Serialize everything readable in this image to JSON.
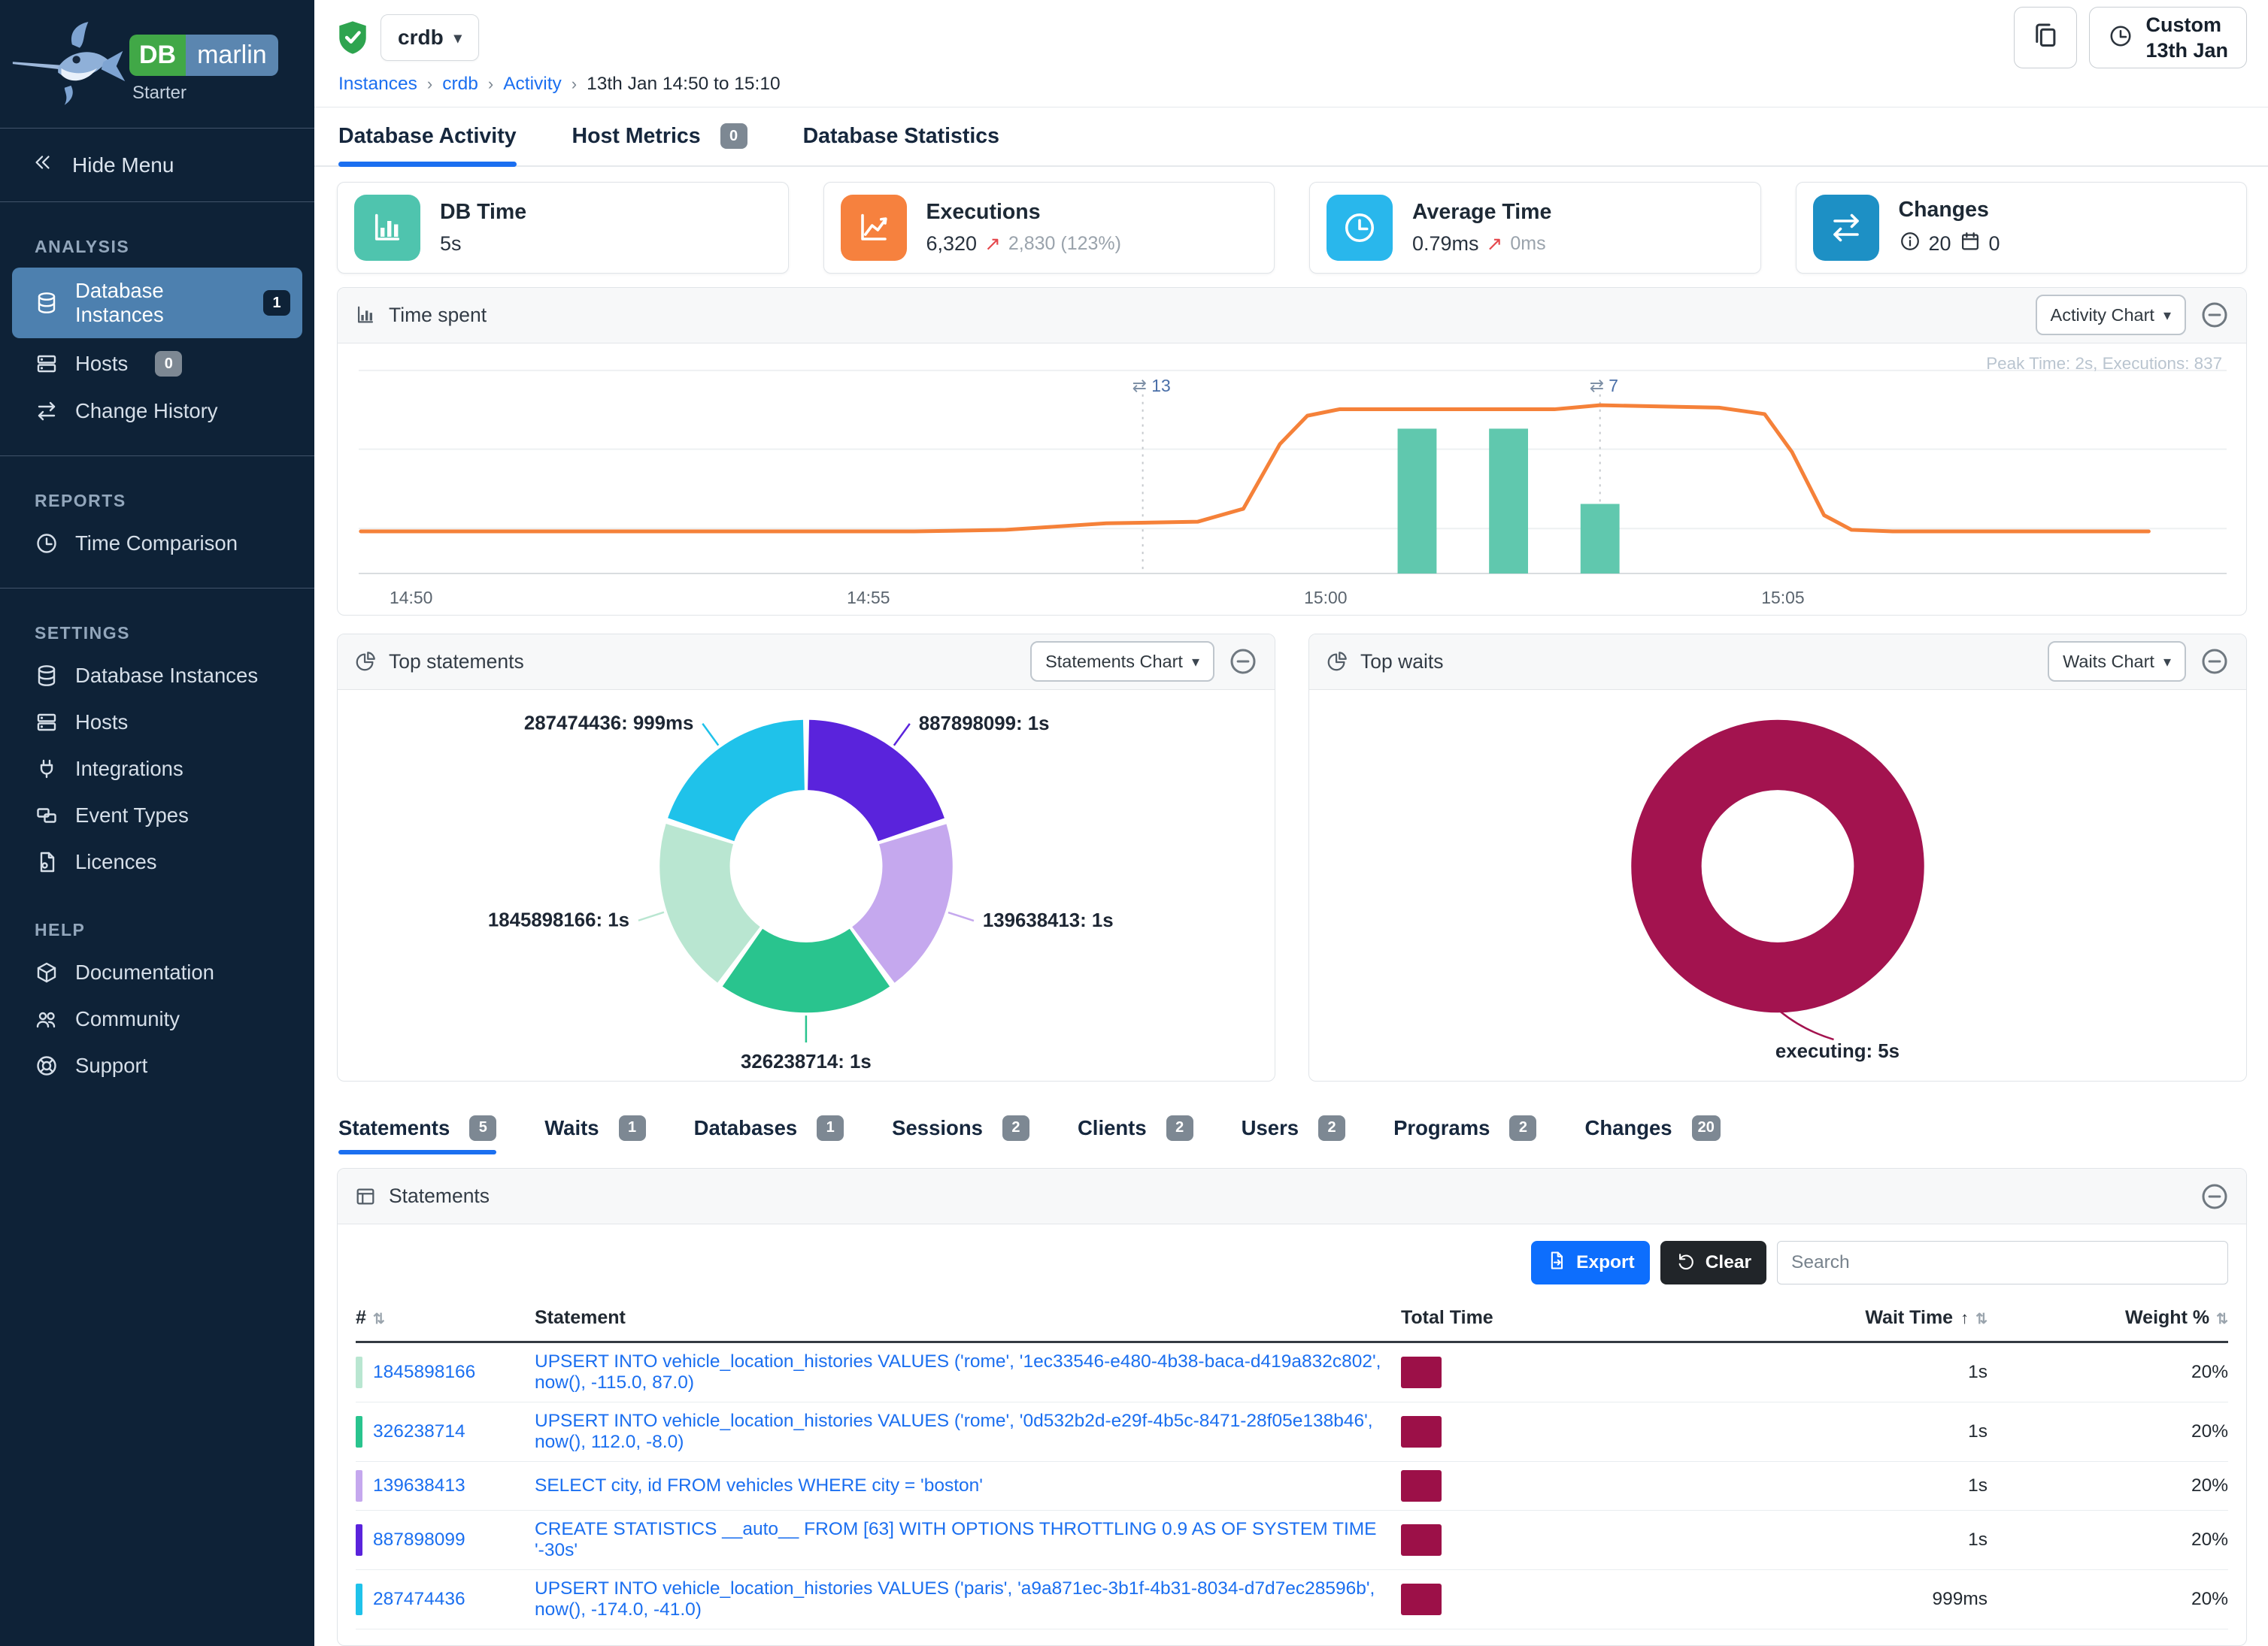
{
  "sidebar": {
    "logo": {
      "db": "DB",
      "marlin": "marlin",
      "edition": "Starter"
    },
    "hide_menu": "Hide Menu",
    "sections": [
      {
        "title": "ANALYSIS",
        "divider_after": true,
        "items": [
          {
            "label": "Database Instances",
            "icon": "database-icon",
            "badge": "1",
            "badge_style": "dark",
            "active": true
          },
          {
            "label": "Hosts",
            "icon": "server-icon",
            "badge": "0"
          },
          {
            "label": "Change History",
            "icon": "swap-icon"
          }
        ]
      },
      {
        "title": "REPORTS",
        "divider_after": true,
        "items": [
          {
            "label": "Time Comparison",
            "icon": "clock-icon"
          }
        ]
      },
      {
        "title": "SETTINGS",
        "divider_after": false,
        "items": [
          {
            "label": "Database Instances",
            "icon": "database-icon"
          },
          {
            "label": "Hosts",
            "icon": "server-icon"
          },
          {
            "label": "Integrations",
            "icon": "plug-icon"
          },
          {
            "label": "Event Types",
            "icon": "event-icon"
          },
          {
            "label": "Licences",
            "icon": "licence-icon"
          }
        ]
      },
      {
        "title": "HELP",
        "divider_after": false,
        "items": [
          {
            "label": "Documentation",
            "icon": "docs-icon"
          },
          {
            "label": "Community",
            "icon": "community-icon"
          },
          {
            "label": "Support",
            "icon": "support-icon"
          }
        ]
      }
    ]
  },
  "header": {
    "instance": "crdb",
    "breadcrumb": [
      {
        "label": "Instances",
        "link": true
      },
      {
        "label": "crdb",
        "link": true
      },
      {
        "label": "Activity",
        "link": true
      },
      {
        "label": "13th Jan 14:50 to 15:10",
        "link": false
      }
    ],
    "range_button": {
      "line1": "Custom",
      "line2": "13th Jan"
    }
  },
  "tabs": [
    {
      "label": "Database Activity",
      "active": true
    },
    {
      "label": "Host Metrics",
      "badge": "0"
    },
    {
      "label": "Database Statistics"
    }
  ],
  "cards": [
    {
      "title": "DB Time",
      "icon": "bar-chart-icon",
      "tile_color": "#4fc4ae",
      "value": "5s"
    },
    {
      "title": "Executions",
      "icon": "line-chart-icon",
      "tile_color": "#f6813e",
      "value": "6,320",
      "delta_arrow": "↗",
      "delta": "2,830 (123%)"
    },
    {
      "title": "Average Time",
      "icon": "clock-icon",
      "tile_color": "#29b7ec",
      "value": "0.79ms",
      "delta_arrow": "↗",
      "delta": "0ms"
    },
    {
      "title": "Changes",
      "icon": "swap-icon",
      "tile_color": "#1d90c5",
      "stats": [
        {
          "icon": "info-icon",
          "value": "20"
        },
        {
          "icon": "calendar-icon",
          "value": "0"
        }
      ]
    }
  ],
  "panels": {
    "time_spent": {
      "title": "Time spent",
      "icon": "bar-chart-icon",
      "button_label": "Activity Chart",
      "note": "Peak Time: 2s, Executions: 837"
    },
    "top_statements": {
      "title": "Top statements",
      "icon": "pie-icon",
      "button_label": "Statements Chart"
    },
    "top_waits": {
      "title": "Top waits",
      "icon": "pie-icon",
      "button_label": "Waits Chart"
    },
    "statements": {
      "title": "Statements",
      "icon": "table-icon",
      "export_label": "Export",
      "clear_label": "Clear",
      "search_placeholder": "Search",
      "columns": [
        {
          "label": "#",
          "sortable": true,
          "align": "left"
        },
        {
          "label": "Statement",
          "sortable": false,
          "align": "left"
        },
        {
          "label": "Total Time",
          "sortable": false,
          "align": "left"
        },
        {
          "label": "Wait Time",
          "sortable": true,
          "sorted": "asc",
          "align": "right"
        },
        {
          "label": "Weight %",
          "sortable": true,
          "align": "right"
        }
      ],
      "rows": [
        {
          "id": "1845898166",
          "color": "#b9e6d1",
          "statement": "UPSERT INTO vehicle_location_histories VALUES ('rome', '1ec33546-e480-4b38-baca-d419a832c802', now(), -115.0, 87.0)",
          "total_time_bar": "#9c1048",
          "wait_time": "1s",
          "weight": "20%"
        },
        {
          "id": "326238714",
          "color": "#29c48e",
          "statement": "UPSERT INTO vehicle_location_histories VALUES ('rome', '0d532b2d-e29f-4b5c-8471-28f05e138b46', now(), 112.0, -8.0)",
          "total_time_bar": "#9c1048",
          "wait_time": "1s",
          "weight": "20%"
        },
        {
          "id": "139638413",
          "color": "#c5a8ee",
          "statement": "SELECT city, id FROM vehicles WHERE city = 'boston'",
          "total_time_bar": "#9c1048",
          "wait_time": "1s",
          "weight": "20%"
        },
        {
          "id": "887898099",
          "color": "#5a23dc",
          "statement": "CREATE STATISTICS __auto__ FROM [63] WITH OPTIONS THROTTLING 0.9 AS OF SYSTEM TIME '-30s'",
          "total_time_bar": "#9c1048",
          "wait_time": "1s",
          "weight": "20%"
        },
        {
          "id": "287474436",
          "color": "#1fc2ea",
          "statement": "UPSERT INTO vehicle_location_histories VALUES ('paris', 'a9a871ec-3b1f-4b31-8034-d7d7ec28596b', now(), -174.0, -41.0)",
          "total_time_bar": "#9c1048",
          "wait_time": "999ms",
          "weight": "20%"
        }
      ]
    }
  },
  "table_tabs": [
    {
      "label": "Statements",
      "badge": "5",
      "active": true
    },
    {
      "label": "Waits",
      "badge": "1"
    },
    {
      "label": "Databases",
      "badge": "1"
    },
    {
      "label": "Sessions",
      "badge": "2"
    },
    {
      "label": "Clients",
      "badge": "2"
    },
    {
      "label": "Users",
      "badge": "2"
    },
    {
      "label": "Programs",
      "badge": "2"
    },
    {
      "label": "Changes",
      "badge": "20"
    }
  ],
  "chart_data": [
    {
      "type": "line",
      "title": "Time spent",
      "x_ticks": [
        "14:50",
        "14:55",
        "15:00",
        "15:05"
      ],
      "x_minutes_per_tick": 5,
      "y_unit": "seconds of DB time",
      "ylim": [
        0,
        2.8
      ],
      "line_series": {
        "name": "DB Time",
        "color": "#f58139",
        "points_min_sec": [
          [
            -0.55,
            0.52
          ],
          [
            5.5,
            0.52
          ],
          [
            6.5,
            0.54
          ],
          [
            7.6,
            0.62
          ],
          [
            8.6,
            0.64
          ],
          [
            9.1,
            0.8
          ],
          [
            9.5,
            1.6
          ],
          [
            9.8,
            1.95
          ],
          [
            10.15,
            2.03
          ],
          [
            12.5,
            2.03
          ],
          [
            13.0,
            2.08
          ],
          [
            14.3,
            2.05
          ],
          [
            14.8,
            1.97
          ],
          [
            15.1,
            1.5
          ],
          [
            15.45,
            0.72
          ],
          [
            15.75,
            0.54
          ],
          [
            16.2,
            0.52
          ],
          [
            19.0,
            0.52
          ]
        ]
      },
      "bars": {
        "name": "Executions",
        "color": "#60c8ae",
        "values_min_sec": [
          [
            11.0,
            1.79
          ],
          [
            12.0,
            1.79
          ],
          [
            13.0,
            0.86
          ]
        ]
      },
      "annotations": [
        {
          "x_minutes": 8.0,
          "label": "13",
          "kind": "changes"
        },
        {
          "x_minutes": 13.0,
          "label": "7",
          "kind": "changes"
        }
      ],
      "note": "Peak Time: 2s, Executions: 837"
    },
    {
      "type": "pie",
      "title": "Top statements",
      "slices": [
        {
          "label": "887898099",
          "value": 1.0,
          "value_label": "1s",
          "color": "#5a23dc"
        },
        {
          "label": "139638413",
          "value": 1.0,
          "value_label": "1s",
          "color": "#c5a8ee"
        },
        {
          "label": "326238714",
          "value": 1.0,
          "value_label": "1s",
          "color": "#29c48e"
        },
        {
          "label": "1845898166",
          "value": 1.0,
          "value_label": "1s",
          "color": "#b9e6d1"
        },
        {
          "label": "287474436",
          "value": 0.999,
          "value_label": "999ms",
          "color": "#1fc2ea"
        }
      ]
    },
    {
      "type": "pie",
      "title": "Top waits",
      "slices": [
        {
          "label": "executing",
          "value": 5.0,
          "value_label": "5s",
          "color": "#a3134f"
        }
      ]
    }
  ]
}
